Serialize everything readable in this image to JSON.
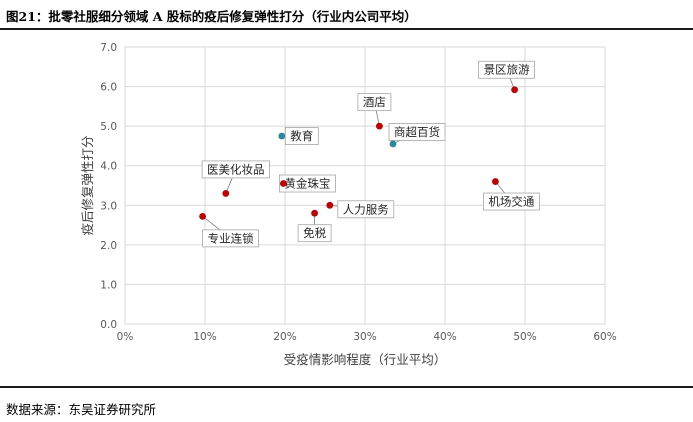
{
  "header": {
    "title": "图21：批零社服细分领域 A 股标的疫后修复弹性打分（行业内公司平均）"
  },
  "footer": {
    "source": "数据来源：东吴证券研究所"
  },
  "colors": {
    "red_point": "#c00000",
    "teal_point": "#31859c",
    "grid": "#d9d9d9",
    "axis_text": "#595959",
    "rule": "#1a1a1a"
  },
  "chart_data": {
    "type": "scatter",
    "title": "",
    "xlabel": "受疫情影响程度（行业平均）",
    "ylabel": "疫后修复弹性打分",
    "xlim": [
      0,
      0.6
    ],
    "ylim": [
      0,
      7
    ],
    "x_ticks": [
      0,
      0.1,
      0.2,
      0.3,
      0.4,
      0.5,
      0.6
    ],
    "x_tick_labels": [
      "0%",
      "10%",
      "20%",
      "30%",
      "40%",
      "50%",
      "60%"
    ],
    "y_ticks": [
      0,
      1,
      2,
      3,
      4,
      5,
      6,
      7
    ],
    "y_tick_labels": [
      "0.0",
      "1.0",
      "2.0",
      "3.0",
      "4.0",
      "5.0",
      "6.0",
      "7.0"
    ],
    "grid": true,
    "points": [
      {
        "label": "景区旅游",
        "x": 0.487,
        "y": 5.92,
        "color": "red"
      },
      {
        "label": "酒店",
        "x": 0.318,
        "y": 5.0,
        "color": "red"
      },
      {
        "label": "商超百货",
        "x": 0.335,
        "y": 4.55,
        "color": "teal"
      },
      {
        "label": "教育",
        "x": 0.196,
        "y": 4.75,
        "color": "teal"
      },
      {
        "label": "医美化妆品",
        "x": 0.126,
        "y": 3.3,
        "color": "red"
      },
      {
        "label": "黄金珠宝",
        "x": 0.198,
        "y": 3.55,
        "color": "red"
      },
      {
        "label": "机场交通",
        "x": 0.463,
        "y": 3.6,
        "color": "red"
      },
      {
        "label": "人力服务",
        "x": 0.256,
        "y": 3.0,
        "color": "red"
      },
      {
        "label": "免税",
        "x": 0.237,
        "y": 2.8,
        "color": "red"
      },
      {
        "label": "专业连锁",
        "x": 0.097,
        "y": 2.72,
        "color": "red"
      }
    ]
  }
}
